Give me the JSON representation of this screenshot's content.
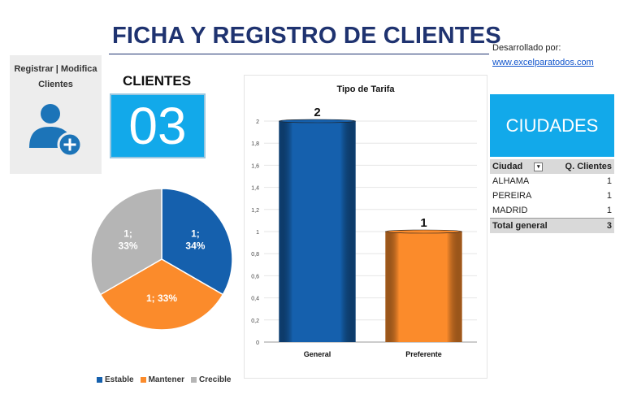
{
  "header": {
    "title": "FICHA Y REGISTRO DE CLIENTES",
    "dev_label": "Desarrollado por:",
    "dev_link": "www.excelparatodos.com"
  },
  "register_button": {
    "label_line1": "Registrar | Modifica",
    "label_line2": "Clientes",
    "icon": "add-user-icon"
  },
  "clientes": {
    "label": "CLIENTES",
    "count": "03"
  },
  "ciudades": {
    "title": "CIUDADES",
    "header": [
      "Ciudad",
      "Q. Clientes"
    ],
    "rows": [
      {
        "city": "ALHAMA",
        "count": "1"
      },
      {
        "city": "PEREIRA",
        "count": "1"
      },
      {
        "city": "MADRID",
        "count": "1"
      }
    ],
    "total_label": "Total general",
    "total": "3"
  },
  "colors": {
    "accent": "#12a9ea",
    "title": "#1f3370",
    "blue": "#1560ad",
    "orange": "#fb8b2b",
    "gray": "#b5b5b5"
  },
  "chart_data": [
    {
      "type": "pie",
      "categories": [
        "Estable",
        "Mantener",
        "Crecible"
      ],
      "values": [
        1,
        1,
        1
      ],
      "labels": [
        "1;\n34%",
        "1; 33%",
        "1;\n33%"
      ],
      "colors": [
        "#1560ad",
        "#fb8b2b",
        "#b5b5b5"
      ],
      "legend": "bottom"
    },
    {
      "type": "bar",
      "title": "Tipo de Tarifa",
      "categories": [
        "General",
        "Preferente"
      ],
      "values": [
        2,
        1
      ],
      "data_labels": [
        "2",
        "1"
      ],
      "colors": [
        "#1560ad",
        "#fb8b2b"
      ],
      "ylim": [
        0,
        2
      ],
      "yticks": [
        "0",
        "0,2",
        "0,4",
        "0,6",
        "0,8",
        "1",
        "1,2",
        "1,4",
        "1,6",
        "1,8",
        "2"
      ],
      "grid": true
    }
  ]
}
